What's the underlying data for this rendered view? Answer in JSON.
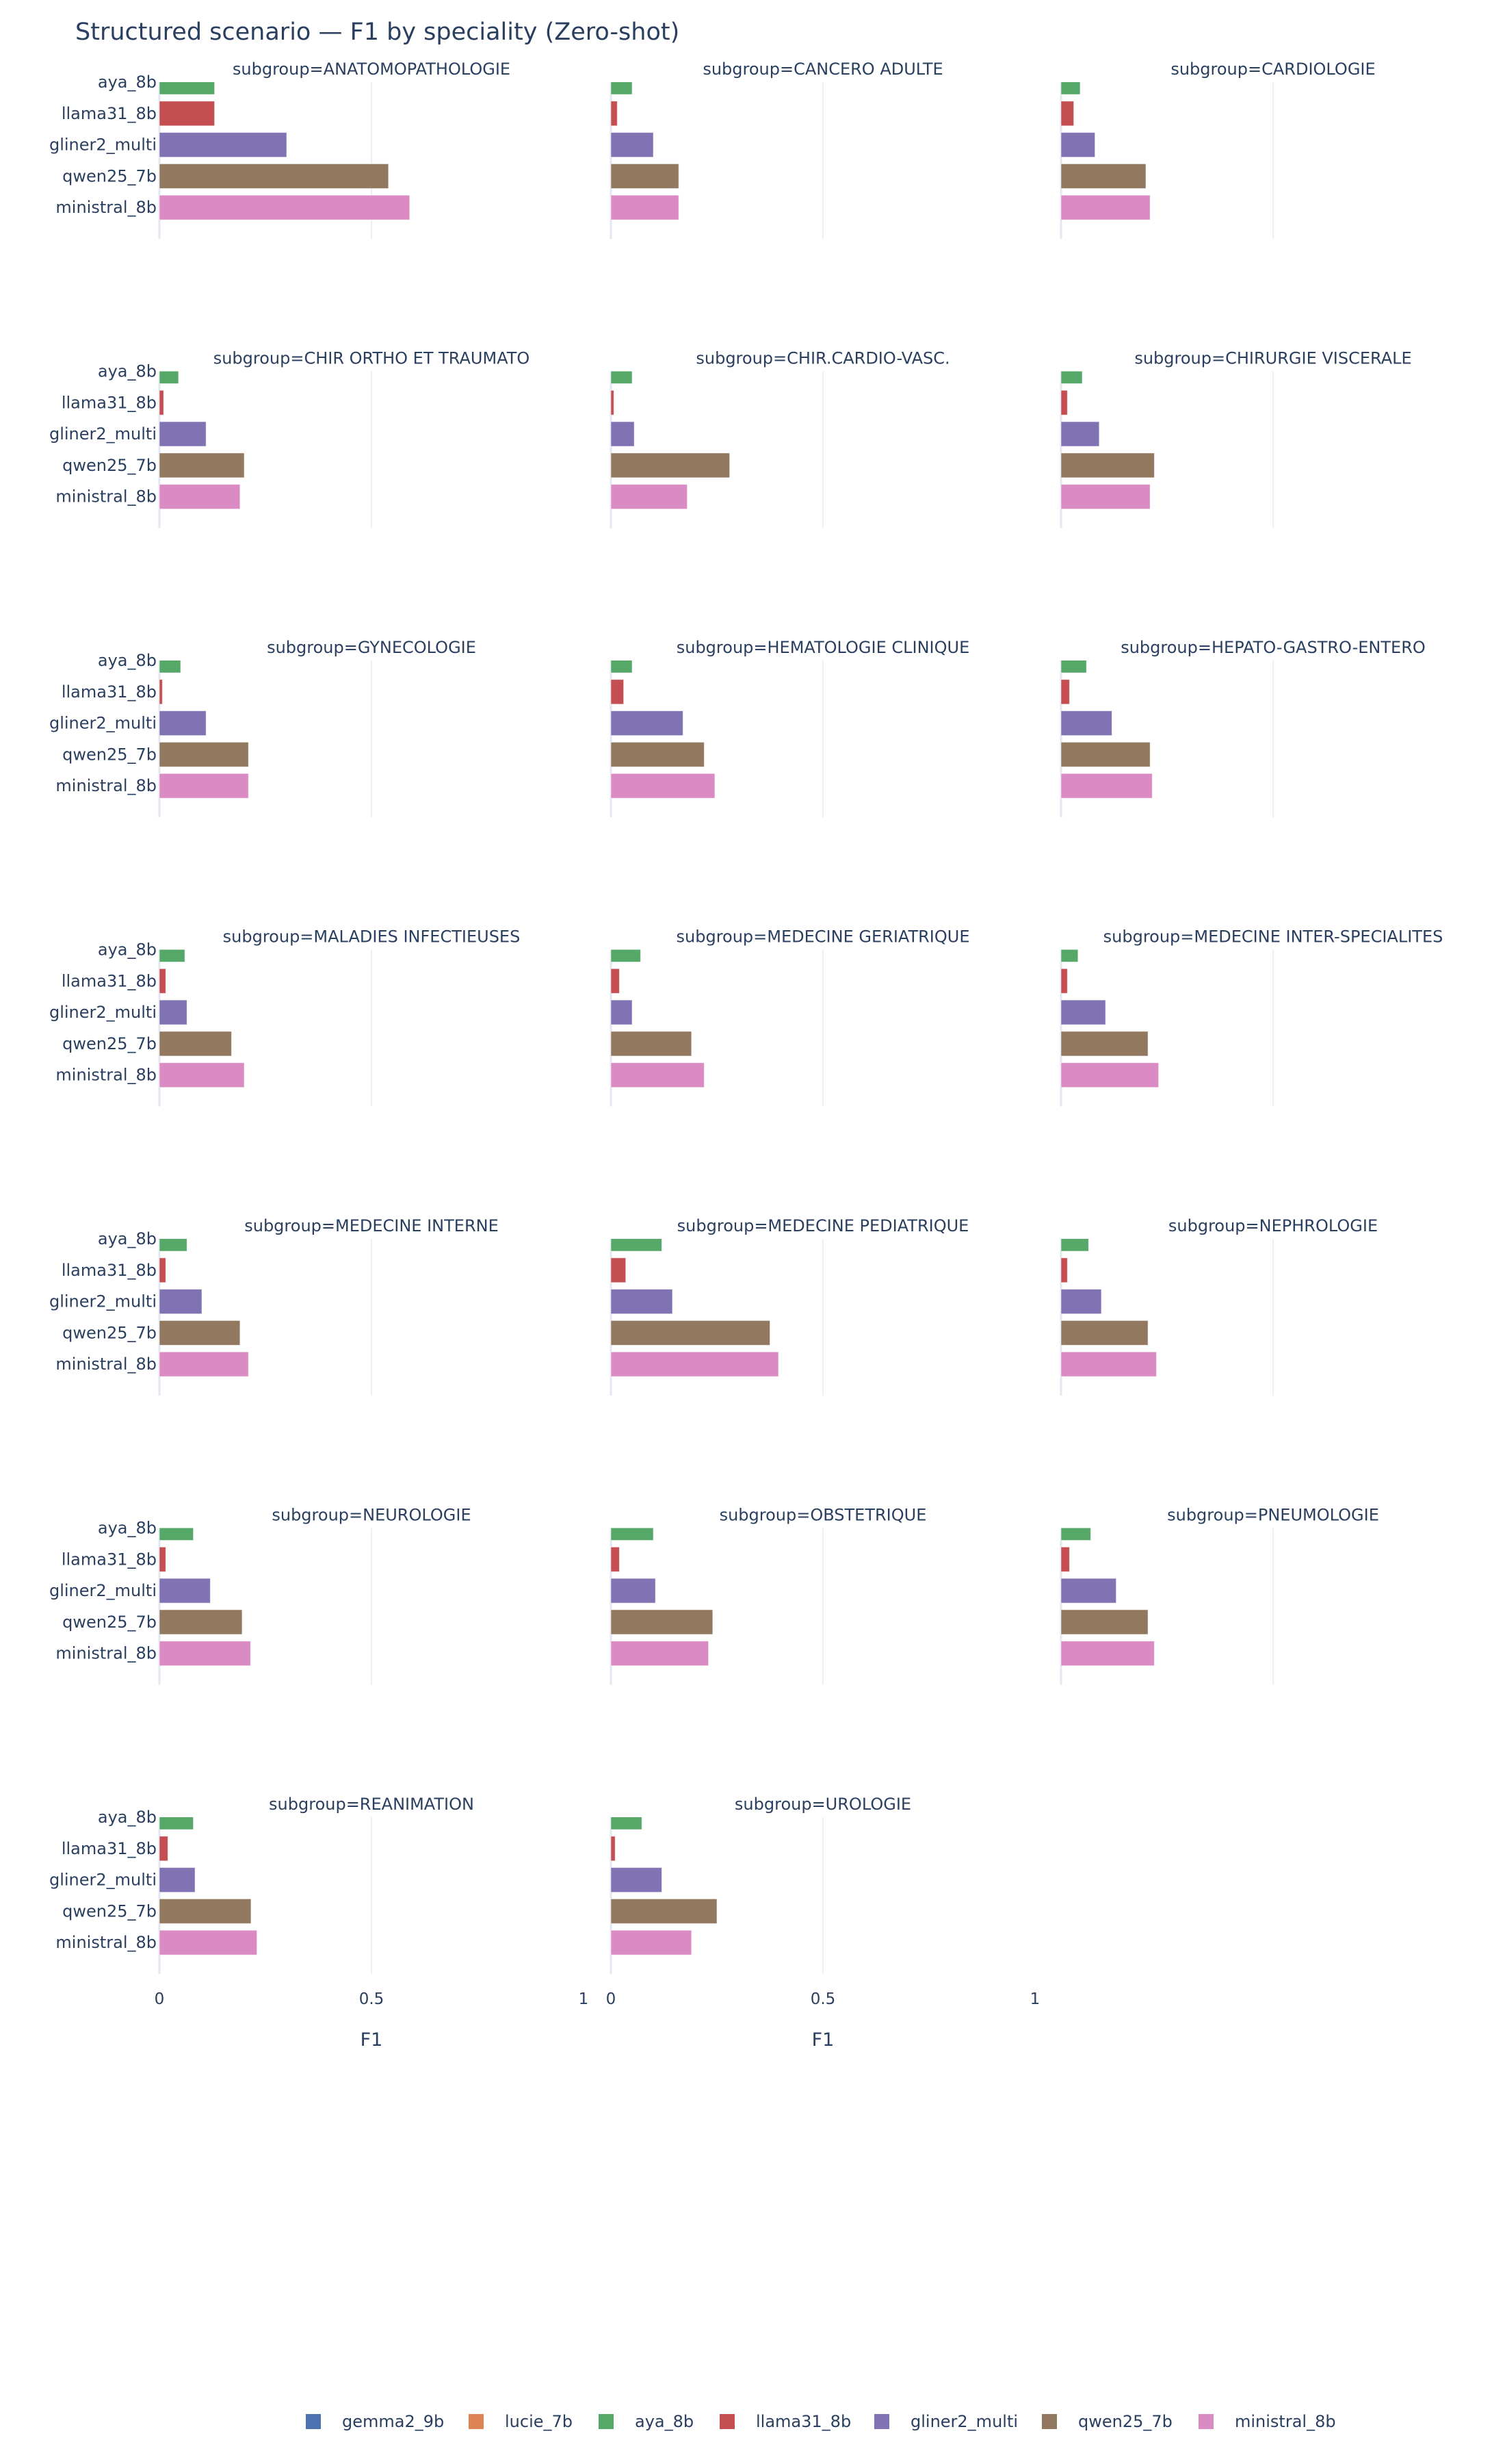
{
  "chart_data": {
    "type": "bar",
    "orientation": "horizontal",
    "title": "Structured scenario — F1 by speciality (Zero-shot)",
    "xlabel": "F1",
    "xlim": [
      0,
      1
    ],
    "xticks": [
      "0",
      "0.5",
      "1"
    ],
    "grid": true,
    "legend_position": "bottom",
    "categories": [
      "aya_8b",
      "llama31_8b",
      "gliner2_multi",
      "qwen25_7b",
      "ministral_8b"
    ],
    "legend": [
      {
        "name": "gemma2_9b",
        "color": "#4C72B0"
      },
      {
        "name": "lucie_7b",
        "color": "#DD8452"
      },
      {
        "name": "aya_8b",
        "color": "#55A868"
      },
      {
        "name": "llama31_8b",
        "color": "#C44E52"
      },
      {
        "name": "gliner2_multi",
        "color": "#8172B3"
      },
      {
        "name": "qwen25_7b",
        "color": "#937860"
      },
      {
        "name": "ministral_8b",
        "color": "#DA8BC3"
      }
    ],
    "facets": [
      {
        "title": "subgroup=ANATOMOPATHOLOGIE",
        "values": [
          0.13,
          0.13,
          0.3,
          0.54,
          0.59
        ]
      },
      {
        "title": "subgroup=CANCERO ADULTE",
        "values": [
          0.05,
          0.015,
          0.1,
          0.16,
          0.16
        ]
      },
      {
        "title": "subgroup=CARDIOLOGIE",
        "values": [
          0.045,
          0.03,
          0.08,
          0.2,
          0.21
        ]
      },
      {
        "title": "subgroup=CHIR ORTHO ET TRAUMATO",
        "values": [
          0.045,
          0.01,
          0.11,
          0.2,
          0.19
        ]
      },
      {
        "title": "subgroup=CHIR.CARDIO-VASC.",
        "values": [
          0.05,
          0.007,
          0.055,
          0.28,
          0.18
        ]
      },
      {
        "title": "subgroup=CHIRURGIE VISCERALE",
        "values": [
          0.05,
          0.015,
          0.09,
          0.22,
          0.21
        ]
      },
      {
        "title": "subgroup=GYNECOLOGIE",
        "values": [
          0.05,
          0.007,
          0.11,
          0.21,
          0.21
        ]
      },
      {
        "title": "subgroup=HEMATOLOGIE CLINIQUE",
        "values": [
          0.05,
          0.03,
          0.17,
          0.22,
          0.245
        ]
      },
      {
        "title": "subgroup=HEPATO-GASTRO-ENTERO",
        "values": [
          0.06,
          0.02,
          0.12,
          0.21,
          0.215
        ]
      },
      {
        "title": "subgroup=MALADIES INFECTIEUSES",
        "values": [
          0.06,
          0.015,
          0.065,
          0.17,
          0.2
        ]
      },
      {
        "title": "subgroup=MEDECINE GERIATRIQUE",
        "values": [
          0.07,
          0.02,
          0.05,
          0.19,
          0.22
        ]
      },
      {
        "title": "subgroup=MEDECINE INTER-SPECIALITES",
        "values": [
          0.04,
          0.015,
          0.105,
          0.205,
          0.23
        ]
      },
      {
        "title": "subgroup=MEDECINE INTERNE",
        "values": [
          0.065,
          0.015,
          0.1,
          0.19,
          0.21
        ]
      },
      {
        "title": "subgroup=MEDECINE PEDIATRIQUE",
        "values": [
          0.12,
          0.035,
          0.145,
          0.375,
          0.395
        ]
      },
      {
        "title": "subgroup=NEPHROLOGIE",
        "values": [
          0.065,
          0.015,
          0.095,
          0.205,
          0.225
        ]
      },
      {
        "title": "subgroup=NEUROLOGIE",
        "values": [
          0.08,
          0.015,
          0.12,
          0.195,
          0.215
        ]
      },
      {
        "title": "subgroup=OBSTETRIQUE",
        "values": [
          0.1,
          0.02,
          0.105,
          0.24,
          0.23
        ]
      },
      {
        "title": "subgroup=PNEUMOLOGIE",
        "values": [
          0.07,
          0.02,
          0.13,
          0.205,
          0.22
        ]
      },
      {
        "title": "subgroup=REANIMATION",
        "values": [
          0.08,
          0.02,
          0.084,
          0.216,
          0.23
        ]
      },
      {
        "title": "subgroup=UROLOGIE",
        "values": [
          0.073,
          0.01,
          0.12,
          0.25,
          0.19
        ]
      }
    ]
  }
}
